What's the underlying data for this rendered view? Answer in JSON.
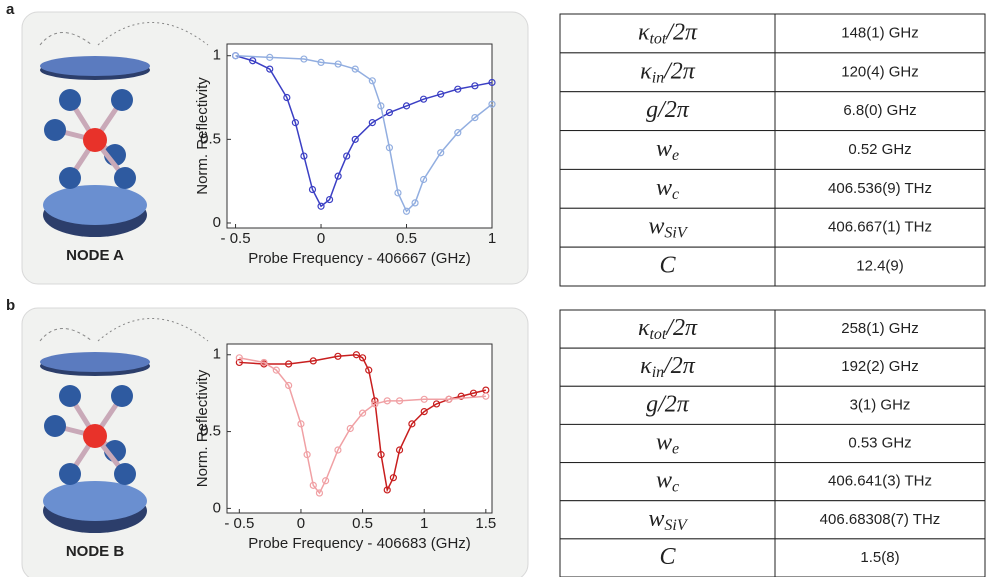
{
  "panels": [
    {
      "label": "a",
      "node": "NODE A",
      "table": [
        {
          "symbol": "κ",
          "sub": "tot",
          "rest": "/2π",
          "value": "148(1) GHz"
        },
        {
          "symbol": "κ",
          "sub": "in",
          "rest": "/2π",
          "value": "120(4) GHz"
        },
        {
          "symbol": "g",
          "rest": "/2π",
          "value": "6.8(0) GHz"
        },
        {
          "symbol": "w",
          "sub": "e",
          "value": "0.52 GHz"
        },
        {
          "symbol": "w",
          "sub": "c",
          "value": "406.536(9) THz"
        },
        {
          "symbol": "w",
          "sub": "SiV",
          "value": "406.667(1) THz"
        },
        {
          "symbol": "C",
          "value": "12.4(9)"
        }
      ]
    },
    {
      "label": "b",
      "node": "NODE B",
      "table": [
        {
          "symbol": "κ",
          "sub": "tot",
          "rest": "/2π",
          "value": "258(1) GHz"
        },
        {
          "symbol": "κ",
          "sub": "in",
          "rest": "/2π",
          "value": "192(2) GHz"
        },
        {
          "symbol": "g",
          "rest": "/2π",
          "value": "3(1) GHz"
        },
        {
          "symbol": "w",
          "sub": "e",
          "value": "0.53 GHz"
        },
        {
          "symbol": "w",
          "sub": "c",
          "value": "406.641(3) THz"
        },
        {
          "symbol": "w",
          "sub": "SiV",
          "value": "406.68308(7) THz"
        },
        {
          "symbol": "C",
          "value": "1.5(8)"
        }
      ]
    }
  ],
  "chart_data": [
    {
      "type": "scatter",
      "x_label": "Probe Frequency - 406667 (GHz)",
      "y_label": "Norm. Reflectivity",
      "xlim": [
        -0.55,
        1.0
      ],
      "ylim": [
        -0.03,
        1.07
      ],
      "xticks": [
        {
          "value": -0.5,
          "label": "- 0.5"
        },
        0,
        0.5,
        1
      ],
      "yticks": [
        0,
        0.5,
        1
      ],
      "series": [
        {
          "color": "#3b3fc4",
          "x": [
            -0.5,
            -0.4,
            -0.3,
            -0.2,
            -0.15,
            -0.1,
            -0.05,
            0,
            0.05,
            0.1,
            0.15,
            0.2,
            0.3,
            0.4,
            0.5,
            0.6,
            0.7,
            0.8,
            0.9,
            1.0
          ],
          "values": [
            1.0,
            0.97,
            0.92,
            0.75,
            0.6,
            0.4,
            0.2,
            0.1,
            0.14,
            0.28,
            0.4,
            0.5,
            0.6,
            0.66,
            0.7,
            0.74,
            0.77,
            0.8,
            0.82,
            0.84
          ]
        },
        {
          "color": "#92aee0",
          "x": [
            -0.5,
            -0.3,
            -0.1,
            0,
            0.1,
            0.2,
            0.3,
            0.35,
            0.4,
            0.45,
            0.5,
            0.55,
            0.6,
            0.7,
            0.8,
            0.9,
            1.0
          ],
          "values": [
            1.0,
            0.99,
            0.98,
            0.96,
            0.95,
            0.92,
            0.85,
            0.7,
            0.45,
            0.18,
            0.07,
            0.12,
            0.26,
            0.42,
            0.54,
            0.63,
            0.71
          ]
        }
      ]
    },
    {
      "type": "scatter",
      "x_label": "Probe Frequency - 406683 (GHz)",
      "y_label": "Norm. Reflectivity",
      "xlim": [
        -0.6,
        1.55
      ],
      "ylim": [
        -0.03,
        1.07
      ],
      "xticks": [
        {
          "value": -0.5,
          "label": "- 0.5"
        },
        0,
        0.5,
        1,
        1.5
      ],
      "yticks": [
        0,
        0.5,
        1
      ],
      "series": [
        {
          "color": "#c81e1e",
          "x": [
            -0.5,
            -0.3,
            -0.1,
            0.1,
            0.3,
            0.45,
            0.5,
            0.55,
            0.6,
            0.65,
            0.7,
            0.75,
            0.8,
            0.9,
            1.0,
            1.1,
            1.2,
            1.3,
            1.4,
            1.5
          ],
          "values": [
            0.95,
            0.94,
            0.94,
            0.96,
            0.99,
            1.0,
            0.98,
            0.9,
            0.7,
            0.35,
            0.12,
            0.2,
            0.38,
            0.55,
            0.63,
            0.68,
            0.71,
            0.73,
            0.75,
            0.77
          ]
        },
        {
          "color": "#f0a0a4",
          "x": [
            -0.5,
            -0.3,
            -0.2,
            -0.1,
            0,
            0.05,
            0.1,
            0.15,
            0.2,
            0.3,
            0.4,
            0.5,
            0.6,
            0.7,
            0.8,
            1.0,
            1.2,
            1.5
          ],
          "values": [
            0.98,
            0.95,
            0.9,
            0.8,
            0.55,
            0.35,
            0.15,
            0.1,
            0.18,
            0.38,
            0.52,
            0.62,
            0.68,
            0.7,
            0.7,
            0.71,
            0.71,
            0.73
          ]
        }
      ]
    }
  ]
}
